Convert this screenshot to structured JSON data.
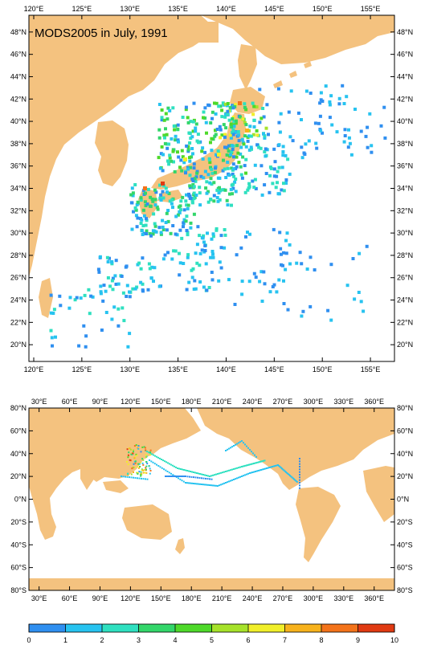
{
  "title": "MODS2005 in July, 1991",
  "colors": {
    "land": "#f4c27f",
    "ocean": "#ffffff",
    "frame": "#000000"
  },
  "regional_map": {
    "lon_range": [
      119.5,
      157.5
    ],
    "lat_range": [
      18.5,
      49.5
    ],
    "lon_ticks": [
      "120°E",
      "125°E",
      "130°E",
      "135°E",
      "140°E",
      "145°E",
      "150°E",
      "155°E"
    ],
    "lat_ticks": [
      "20°N",
      "22°N",
      "24°N",
      "26°N",
      "28°N",
      "30°N",
      "32°N",
      "34°N",
      "36°N",
      "38°N",
      "40°N",
      "42°N",
      "44°N",
      "46°N",
      "48°N"
    ]
  },
  "global_map": {
    "lon_range": [
      20,
      380
    ],
    "lat_range": [
      -80,
      80
    ],
    "lon_ticks": [
      "30°E",
      "60°E",
      "90°E",
      "120°E",
      "150°E",
      "180°E",
      "210°E",
      "240°E",
      "270°E",
      "300°E",
      "330°E",
      "360°E"
    ],
    "lat_ticks": [
      "80°S",
      "60°S",
      "40°S",
      "20°S",
      "0°N",
      "20°N",
      "40°N",
      "60°N",
      "80°N"
    ]
  },
  "colorbar": {
    "labels": [
      "0",
      "1",
      "2",
      "3",
      "4",
      "5",
      "6",
      "7",
      "8",
      "9",
      "10"
    ],
    "colors": [
      "#1f5fd6",
      "#2f8ff0",
      "#27c3f0",
      "#2fe0c0",
      "#33d66a",
      "#4ed92a",
      "#a6e22a",
      "#f1ef2a",
      "#f7b21c",
      "#f3731a",
      "#e03a12"
    ]
  }
}
